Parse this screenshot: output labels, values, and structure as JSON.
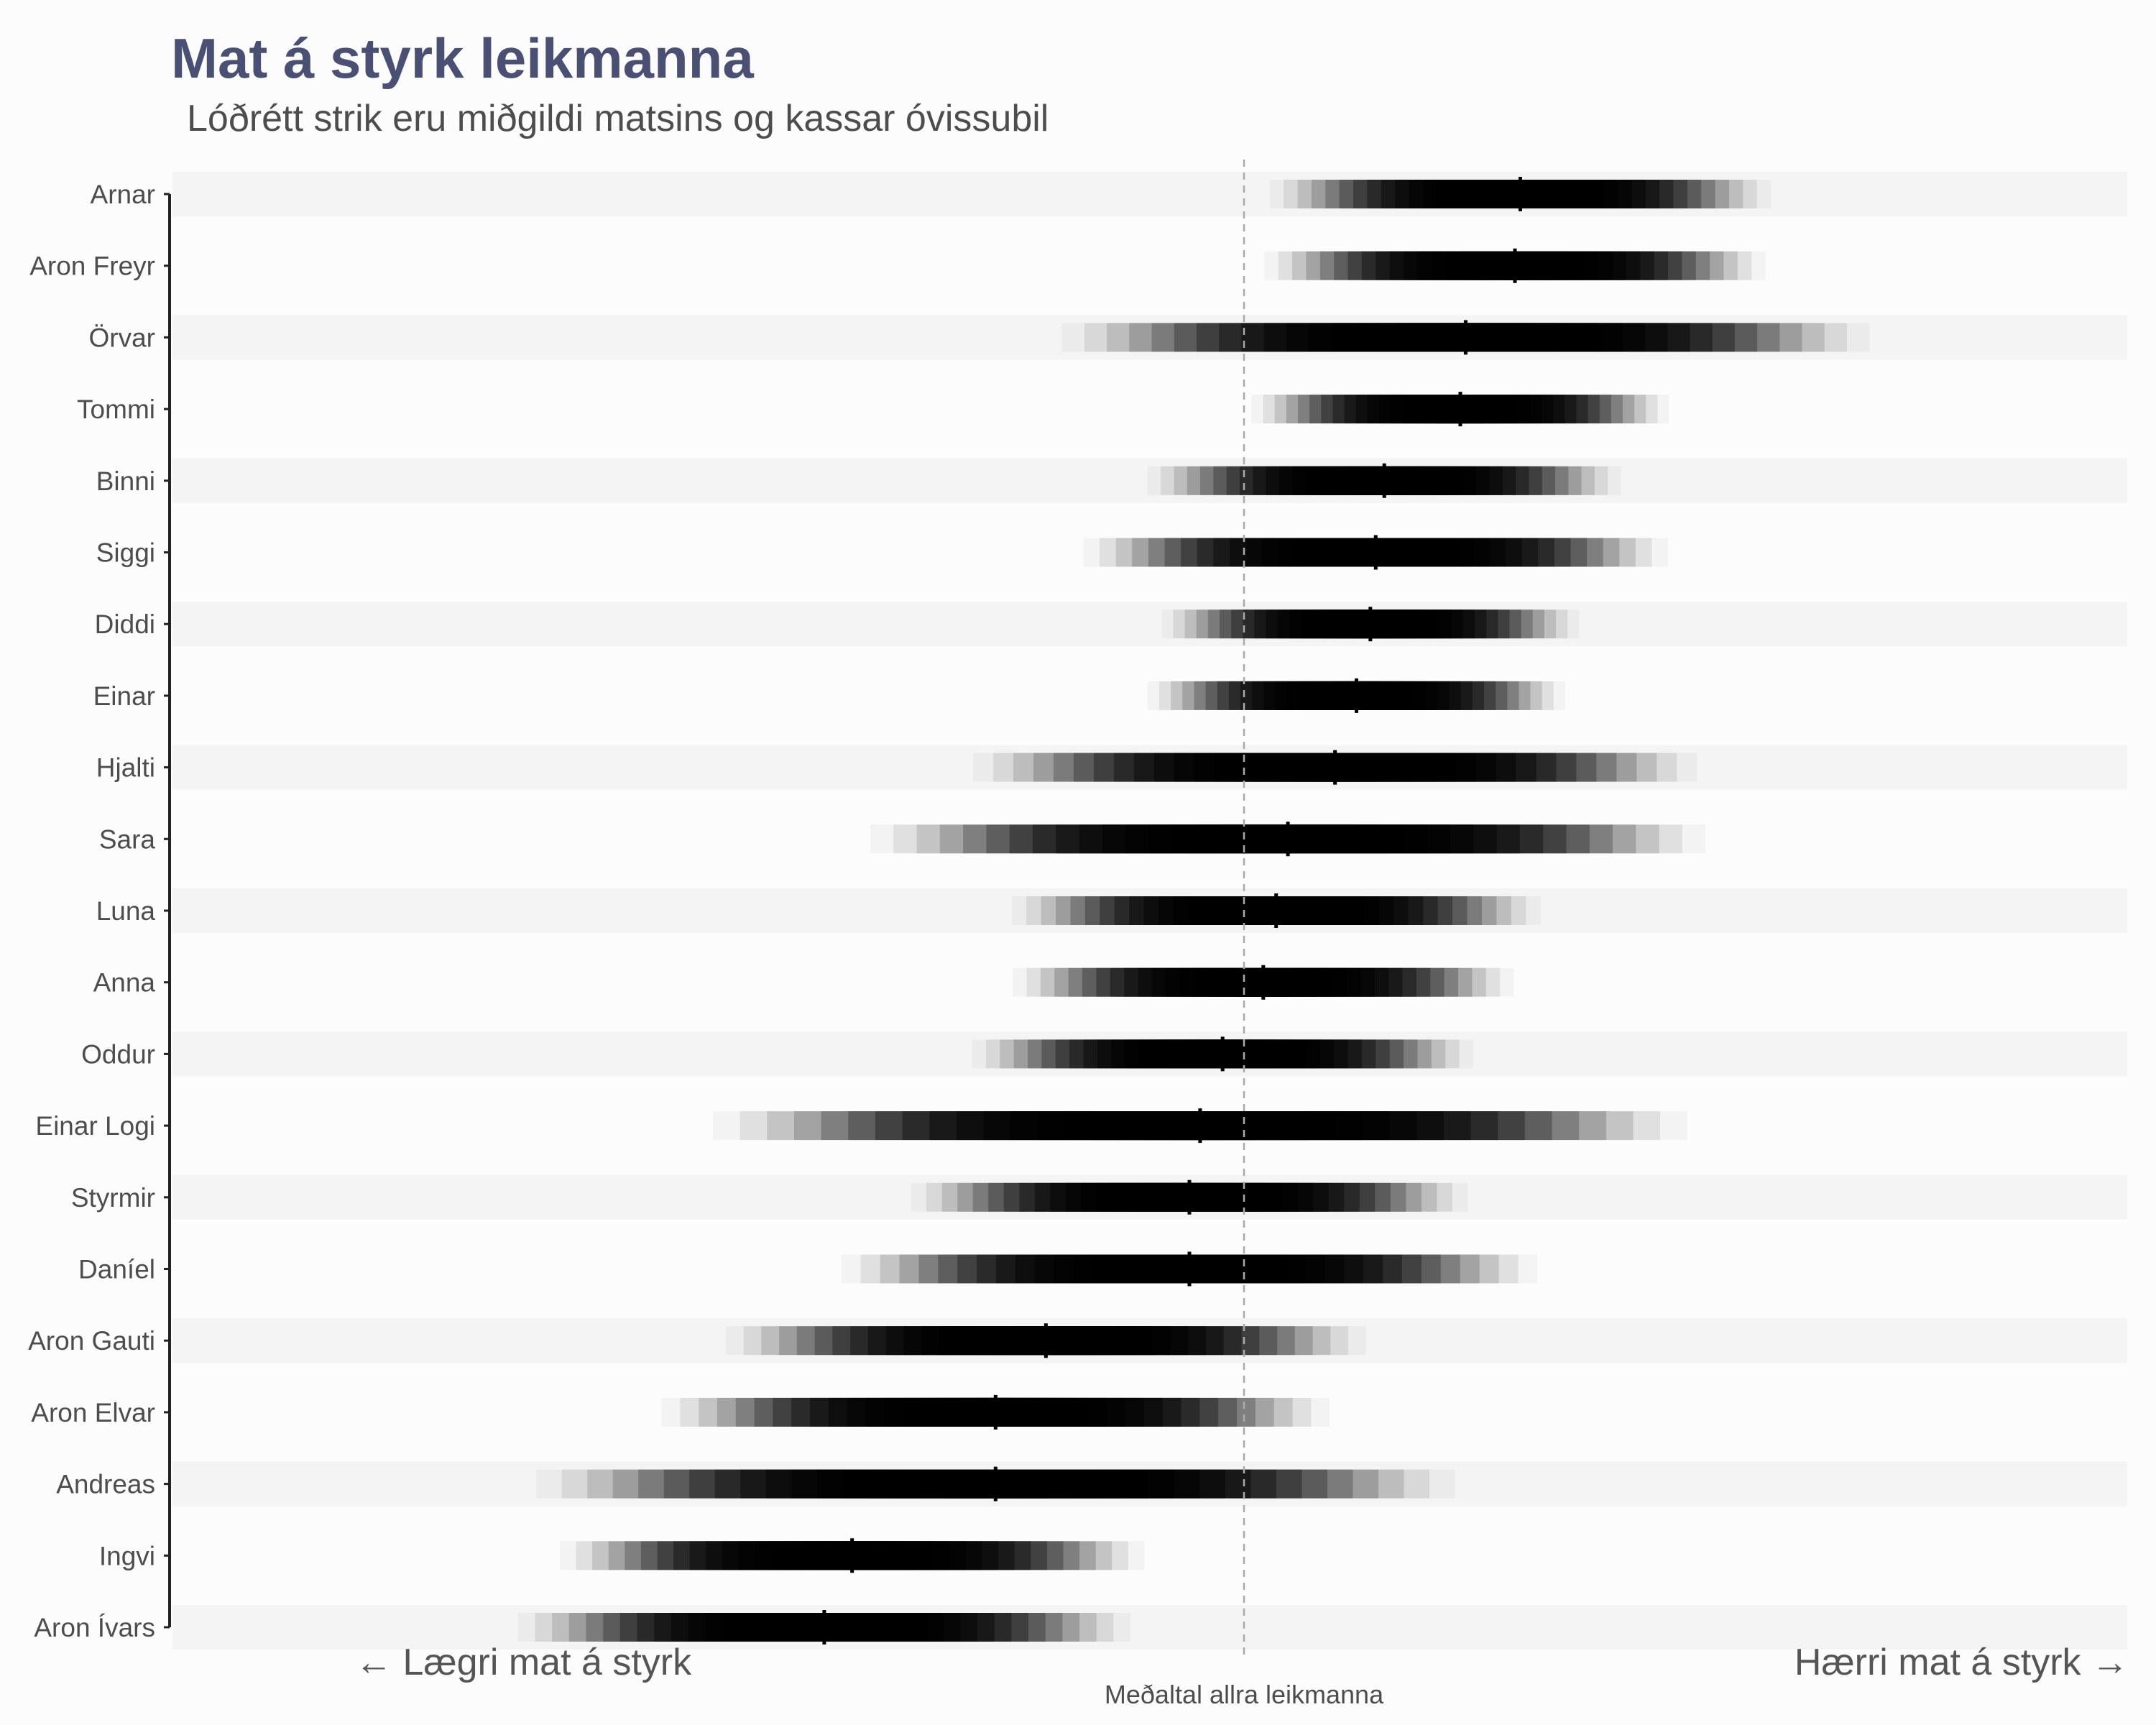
{
  "chart_data": {
    "type": "interval",
    "title": "Mat á styrk leikmanna",
    "subtitle": "Lóðrétt strik eru miðgildi matsins og kassar óvissubil",
    "left_annotation": "← Lægri mat á styrk",
    "right_annotation": "Hærri mat á styrk →",
    "reference_line": {
      "label": "Meðaltal allra leikmanna",
      "x": 0
    },
    "xlim": [
      -1.0,
      1.0
    ],
    "gridlines": false,
    "alternating_row_bands": true,
    "colors": {
      "title": "#4a5074",
      "text": "#4d4d4d",
      "band": "#f4f4f4",
      "background": "#fcfcfc",
      "median_tick": "#000000",
      "reference_line": "#aaaaaa"
    },
    "players": [
      {
        "name": "Arnar",
        "median": 0.258,
        "sd": 0.09
      },
      {
        "name": "Aron Freyr",
        "median": 0.253,
        "sd": 0.09
      },
      {
        "name": "Örvar",
        "median": 0.207,
        "sd": 0.145
      },
      {
        "name": "Tommi",
        "median": 0.202,
        "sd": 0.075
      },
      {
        "name": "Binni",
        "median": 0.131,
        "sd": 0.085
      },
      {
        "name": "Siggi",
        "median": 0.123,
        "sd": 0.105
      },
      {
        "name": "Diddi",
        "median": 0.118,
        "sd": 0.075
      },
      {
        "name": "Einar",
        "median": 0.105,
        "sd": 0.075
      },
      {
        "name": "Hjalti",
        "median": 0.085,
        "sd": 0.13
      },
      {
        "name": "Sara",
        "median": 0.041,
        "sd": 0.15
      },
      {
        "name": "Luna",
        "median": 0.03,
        "sd": 0.095
      },
      {
        "name": "Anna",
        "median": 0.018,
        "sd": 0.09
      },
      {
        "name": "Oddur",
        "median": -0.02,
        "sd": 0.09
      },
      {
        "name": "Einar Logi",
        "median": -0.041,
        "sd": 0.175
      },
      {
        "name": "Styrmir",
        "median": -0.051,
        "sd": 0.1
      },
      {
        "name": "Daníel",
        "median": -0.051,
        "sd": 0.125
      },
      {
        "name": "Aron Gauti",
        "median": -0.185,
        "sd": 0.115
      },
      {
        "name": "Aron Elvar",
        "median": -0.232,
        "sd": 0.12
      },
      {
        "name": "Andreas",
        "median": -0.232,
        "sd": 0.165
      },
      {
        "name": "Ingvi",
        "median": -0.366,
        "sd": 0.105
      },
      {
        "name": "Aron Ívars",
        "median": -0.392,
        "sd": 0.11
      }
    ]
  }
}
